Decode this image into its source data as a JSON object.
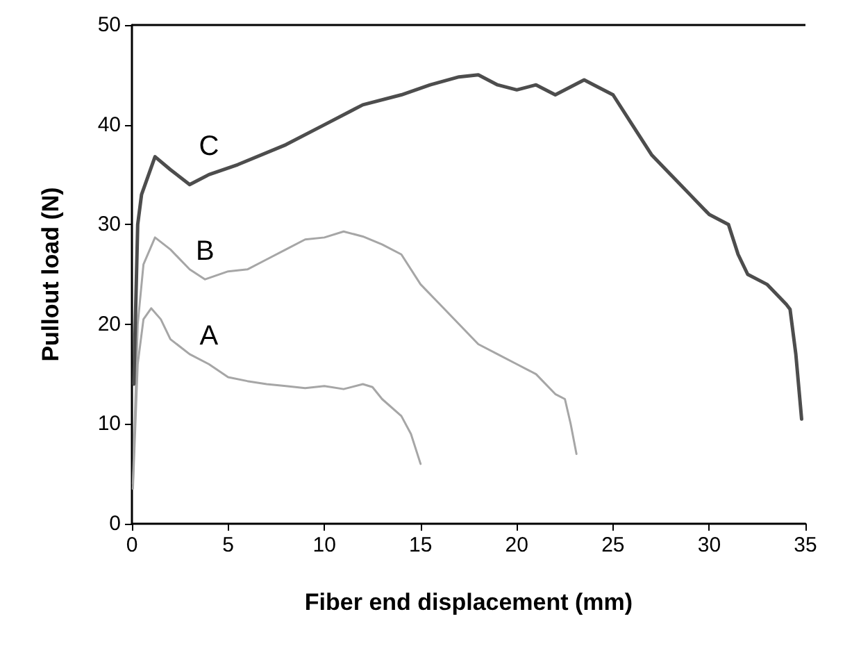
{
  "chart_data": {
    "type": "line",
    "xlabel": "Fiber end displacement (mm)",
    "ylabel": "Pullout load (N)",
    "xlim": [
      0,
      35
    ],
    "xticks": [
      0,
      5,
      10,
      15,
      20,
      25,
      30,
      35
    ],
    "ylim": [
      0,
      50
    ],
    "yticks": [
      0,
      10,
      20,
      30,
      40,
      50
    ],
    "grid": false,
    "line_style": "solid",
    "series": [
      {
        "name": "C",
        "color": "#4d4d4d",
        "x": [
          0.1,
          0.3,
          0.5,
          1.2,
          2,
          3,
          4,
          5.5,
          8,
          10,
          12,
          14,
          15.5,
          17,
          18,
          19,
          20,
          21,
          22,
          23.5,
          24,
          25,
          26,
          27,
          28,
          29,
          30,
          31,
          31.5,
          32,
          33,
          34,
          34.2,
          34.5,
          34.8
        ],
        "values": [
          14,
          30,
          33,
          36.8,
          35.5,
          34,
          35,
          36,
          38,
          40,
          42,
          43,
          44,
          44.8,
          45,
          44,
          43.5,
          44,
          43,
          44.5,
          44,
          43,
          40,
          37,
          35,
          33,
          31,
          30,
          27,
          25,
          24,
          22,
          21.5,
          17,
          10.5
        ]
      },
      {
        "name": "B",
        "color": "#a6a6a6",
        "x": [
          0.05,
          0.3,
          0.6,
          1.2,
          2,
          3,
          3.8,
          5,
          6,
          7,
          8,
          9,
          10,
          11,
          12,
          13,
          14,
          15,
          16,
          17,
          18,
          19,
          20,
          21,
          22,
          22.5,
          22.8,
          23.1
        ],
        "values": [
          4,
          20,
          26,
          28.7,
          27.5,
          25.5,
          24.5,
          25.3,
          25.5,
          26.5,
          27.5,
          28.5,
          28.7,
          29.3,
          28.8,
          28,
          27,
          24,
          22,
          20,
          18,
          17,
          16,
          15,
          13,
          12.5,
          10,
          7
        ]
      },
      {
        "name": "A",
        "color": "#a6a6a6",
        "x": [
          0.05,
          0.3,
          0.6,
          1,
          1.5,
          2,
          3,
          4,
          5,
          6,
          7,
          8,
          9,
          10,
          11,
          12,
          12.5,
          13,
          14,
          14.5,
          15
        ],
        "values": [
          3.5,
          16,
          20.5,
          21.6,
          20.5,
          18.5,
          17,
          16,
          14.7,
          14.3,
          14,
          13.8,
          13.6,
          13.8,
          13.5,
          14,
          13.7,
          12.5,
          10.8,
          9,
          6
        ]
      }
    ]
  }
}
